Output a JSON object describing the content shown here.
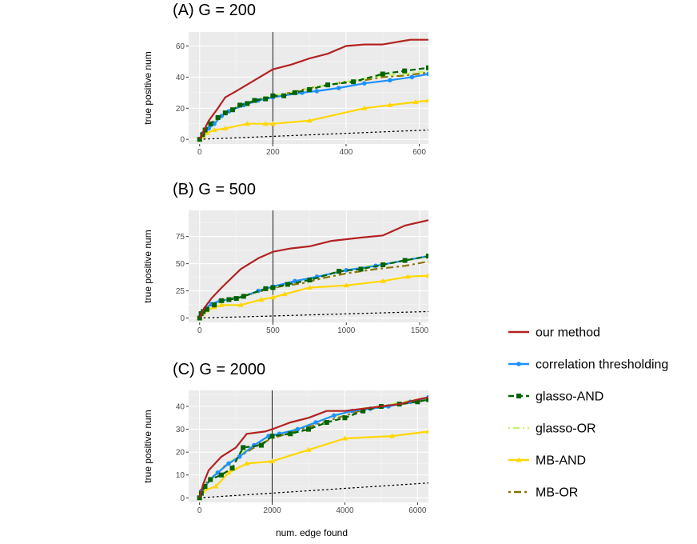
{
  "chart_data": [
    {
      "type": "line",
      "title": "(A) G = 200",
      "xlabel": "",
      "ylabel": "true positive num",
      "xlim": [
        -30,
        625
      ],
      "ylim": [
        -3,
        69
      ],
      "xticks": [
        0,
        200,
        400,
        600
      ],
      "yticks": [
        0,
        20,
        40,
        60
      ],
      "vline": 200,
      "baseline": {
        "x": [
          0,
          625
        ],
        "y": [
          0,
          6
        ]
      },
      "series": [
        {
          "name": "our method",
          "x": [
            0,
            10,
            25,
            50,
            70,
            100,
            150,
            200,
            250,
            300,
            350,
            400,
            450,
            500,
            575,
            625
          ],
          "y": [
            0,
            5,
            12,
            20,
            27,
            31,
            38,
            45,
            48,
            52,
            55,
            60,
            61,
            61,
            64,
            64
          ]
        },
        {
          "name": "correlation thresholding",
          "x": [
            0,
            10,
            25,
            40,
            60,
            80,
            120,
            160,
            200,
            280,
            320,
            380,
            450,
            520,
            580,
            625
          ],
          "y": [
            0,
            4,
            7,
            10,
            15,
            18,
            22,
            25,
            27,
            30,
            31,
            33,
            36,
            38,
            40,
            42
          ]
        },
        {
          "name": "glasso-AND",
          "x": [
            0,
            8,
            15,
            30,
            50,
            70,
            90,
            110,
            130,
            150,
            180,
            200,
            230,
            260,
            300,
            350,
            420,
            500,
            560,
            625
          ],
          "y": [
            0,
            3,
            6,
            10,
            14,
            17,
            19,
            22,
            23,
            25,
            26,
            28,
            28,
            30,
            32,
            35,
            37,
            42,
            44,
            46
          ]
        },
        {
          "name": "glasso-OR",
          "x": [
            0,
            10,
            25,
            50,
            80,
            110,
            150,
            200,
            250,
            300,
            350,
            400,
            450,
            500,
            560,
            625
          ],
          "y": [
            0,
            4,
            8,
            13,
            18,
            22,
            25,
            28,
            30,
            33,
            35,
            37,
            39,
            41,
            42,
            44
          ]
        },
        {
          "name": "MB-AND",
          "x": [
            0,
            10,
            20,
            40,
            70,
            130,
            180,
            200,
            300,
            450,
            520,
            590,
            625
          ],
          "y": [
            0,
            2,
            4,
            6,
            7,
            10,
            10,
            10,
            12,
            20,
            22,
            24,
            25
          ]
        },
        {
          "name": "MB-OR",
          "x": [
            0,
            10,
            25,
            50,
            80,
            110,
            150,
            200,
            250,
            300,
            350,
            400,
            450,
            500,
            560,
            625
          ],
          "y": [
            0,
            4,
            8,
            13,
            18,
            22,
            25,
            28,
            30,
            33,
            35,
            37,
            38,
            40,
            41,
            43
          ]
        }
      ]
    },
    {
      "type": "line",
      "title": "(B) G = 500",
      "xlabel": "",
      "ylabel": "true positive num",
      "xlim": [
        -75,
        1560
      ],
      "ylim": [
        -4,
        99
      ],
      "xticks": [
        0,
        500,
        1000,
        1500
      ],
      "yticks": [
        0,
        25,
        50,
        75
      ],
      "vline": 500,
      "baseline": {
        "x": [
          0,
          1560
        ],
        "y": [
          0,
          6
        ]
      },
      "series": [
        {
          "name": "our method",
          "x": [
            0,
            30,
            80,
            150,
            280,
            400,
            500,
            620,
            750,
            900,
            1100,
            1250,
            1400,
            1560
          ],
          "y": [
            0,
            9,
            18,
            28,
            45,
            55,
            61,
            64,
            66,
            71,
            74,
            76,
            85,
            90
          ]
        },
        {
          "name": "correlation thresholding",
          "x": [
            0,
            15,
            40,
            80,
            140,
            200,
            300,
            400,
            500,
            650,
            800,
            1000,
            1200,
            1400,
            1560
          ],
          "y": [
            0,
            5,
            9,
            13,
            16,
            17,
            20,
            25,
            29,
            34,
            38,
            44,
            48,
            53,
            57
          ]
        },
        {
          "name": "glasso-AND",
          "x": [
            0,
            10,
            25,
            50,
            100,
            150,
            200,
            250,
            300,
            450,
            500,
            600,
            750,
            950,
            1100,
            1250,
            1400,
            1560
          ],
          "y": [
            0,
            4,
            6,
            8,
            12,
            16,
            17,
            18,
            20,
            27,
            28,
            31,
            35,
            43,
            45,
            49,
            53,
            57
          ]
        },
        {
          "name": "glasso-OR",
          "x": [
            0,
            15,
            40,
            80,
            150,
            250,
            350,
            450,
            550,
            700,
            850,
            1000,
            1200,
            1400,
            1560
          ],
          "y": [
            0,
            5,
            9,
            12,
            16,
            19,
            22,
            26,
            30,
            34,
            39,
            44,
            49,
            53,
            56
          ]
        },
        {
          "name": "MB-AND",
          "x": [
            0,
            20,
            50,
            100,
            150,
            280,
            420,
            500,
            580,
            750,
            1000,
            1250,
            1420,
            1560
          ],
          "y": [
            0,
            4,
            7,
            10,
            12,
            12,
            17,
            19,
            22,
            28,
            30,
            34,
            38,
            39
          ]
        },
        {
          "name": "MB-OR",
          "x": [
            0,
            15,
            40,
            80,
            150,
            250,
            350,
            450,
            550,
            700,
            850,
            1000,
            1200,
            1400,
            1560
          ],
          "y": [
            0,
            5,
            9,
            12,
            16,
            19,
            22,
            26,
            29,
            32,
            37,
            41,
            45,
            48,
            52
          ]
        }
      ]
    },
    {
      "type": "line",
      "title": "(C) G = 2000",
      "xlabel": "num. edge found",
      "ylabel": "true positive num",
      "xlim": [
        -300,
        6300
      ],
      "ylim": [
        -2,
        47
      ],
      "xticks": [
        0,
        2000,
        4000,
        6000
      ],
      "yticks": [
        0,
        10,
        20,
        30,
        40
      ],
      "vline": 2000,
      "baseline": {
        "x": [
          0,
          6300
        ],
        "y": [
          0,
          6.5
        ]
      },
      "series": [
        {
          "name": "our method",
          "x": [
            0,
            100,
            250,
            600,
            1000,
            1300,
            1800,
            2000,
            2500,
            3000,
            3500,
            4000,
            4500,
            5000,
            5500,
            6000,
            6300
          ],
          "y": [
            0,
            6,
            12,
            18,
            22,
            28,
            29,
            30,
            33,
            35,
            38,
            38,
            39,
            40,
            41,
            43,
            44
          ]
        },
        {
          "name": "correlation thresholding",
          "x": [
            0,
            50,
            150,
            300,
            500,
            800,
            1100,
            1500,
            1900,
            2200,
            2700,
            3200,
            3700,
            4200,
            4700,
            5200,
            5800,
            6300
          ],
          "y": [
            0,
            3,
            5,
            8,
            11,
            15,
            18,
            23,
            27,
            28,
            30,
            33,
            36,
            38,
            39,
            40,
            42,
            44
          ]
        },
        {
          "name": "glasso-AND",
          "x": [
            0,
            50,
            150,
            300,
            600,
            900,
            1200,
            1700,
            2000,
            2500,
            3000,
            3500,
            4000,
            4500,
            5000,
            5500,
            6000,
            6300
          ],
          "y": [
            0,
            2,
            5,
            8,
            10,
            13,
            22,
            23,
            27,
            28,
            30,
            33,
            35,
            38,
            40,
            41,
            42,
            43
          ]
        },
        {
          "name": "glasso-OR",
          "x": [
            0,
            50,
            150,
            350,
            700,
            1100,
            1600,
            2000,
            2600,
            3200,
            3800,
            4400,
            5000,
            5600,
            6300
          ],
          "y": [
            0,
            3,
            6,
            9,
            14,
            19,
            24,
            27,
            30,
            33,
            36,
            39,
            40,
            42,
            44
          ]
        },
        {
          "name": "MB-AND",
          "x": [
            0,
            100,
            450,
            800,
            1300,
            2000,
            3000,
            4000,
            5300,
            6300
          ],
          "y": [
            0,
            3,
            5,
            11,
            15,
            16,
            21,
            26,
            27,
            29
          ]
        },
        {
          "name": "MB-OR",
          "x": [
            0,
            50,
            150,
            350,
            700,
            1100,
            1600,
            2000,
            2600,
            3200,
            3800,
            4400,
            5000,
            5600,
            6300
          ],
          "y": [
            0,
            3,
            6,
            9,
            14,
            18,
            23,
            26,
            29,
            32,
            35,
            38,
            40,
            41,
            43
          ]
        }
      ]
    }
  ],
  "legend": [
    {
      "name": "our method",
      "color": "#b22222",
      "dash": "",
      "marker": "none"
    },
    {
      "name": "correlation thresholding",
      "color": "#1e90ff",
      "dash": "",
      "marker": "circle"
    },
    {
      "name": "glasso-AND",
      "color": "#006400",
      "dash": "7,4",
      "marker": "square"
    },
    {
      "name": "glasso-OR",
      "color": "#c6f56b",
      "dash": "2,4,8,4",
      "marker": "none"
    },
    {
      "name": "MB-AND",
      "color": "#ffd700",
      "dash": "",
      "marker": "triangle"
    },
    {
      "name": "MB-OR",
      "color": "#8b7500",
      "dash": "3,4,9,4",
      "marker": "none"
    }
  ]
}
